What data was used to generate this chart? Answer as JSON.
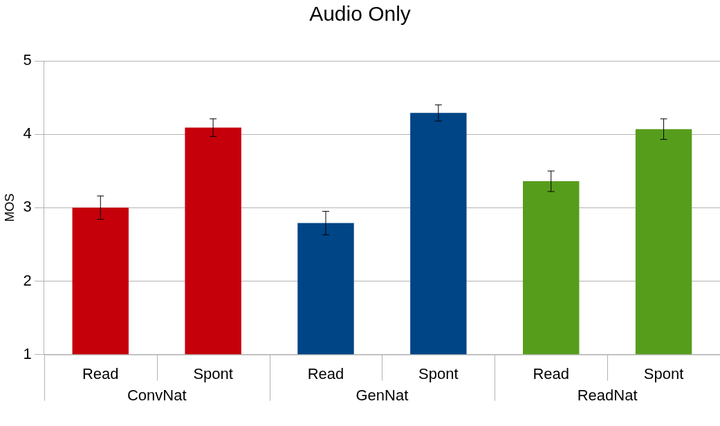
{
  "chart_data": {
    "type": "bar",
    "title": "Audio Only",
    "ylabel": "MOS",
    "categories": [
      "Read",
      "Spont",
      "Read",
      "Spont",
      "Read",
      "Spont"
    ],
    "values": [
      3.0,
      4.09,
      2.79,
      4.29,
      3.36,
      4.07
    ],
    "colors": [
      "#c5000b",
      "#c5000b",
      "#004586",
      "#004586",
      "#579d1c",
      "#579d1c"
    ],
    "errors": [
      0.16,
      0.12,
      0.16,
      0.11,
      0.14,
      0.14
    ],
    "annotations": [
      "ConvNat",
      "GenNat",
      "ReadNat"
    ],
    "ylim": [
      1,
      5
    ],
    "yticks": [
      1,
      2,
      3,
      4,
      5
    ],
    "grid": "y",
    "legend": false
  }
}
